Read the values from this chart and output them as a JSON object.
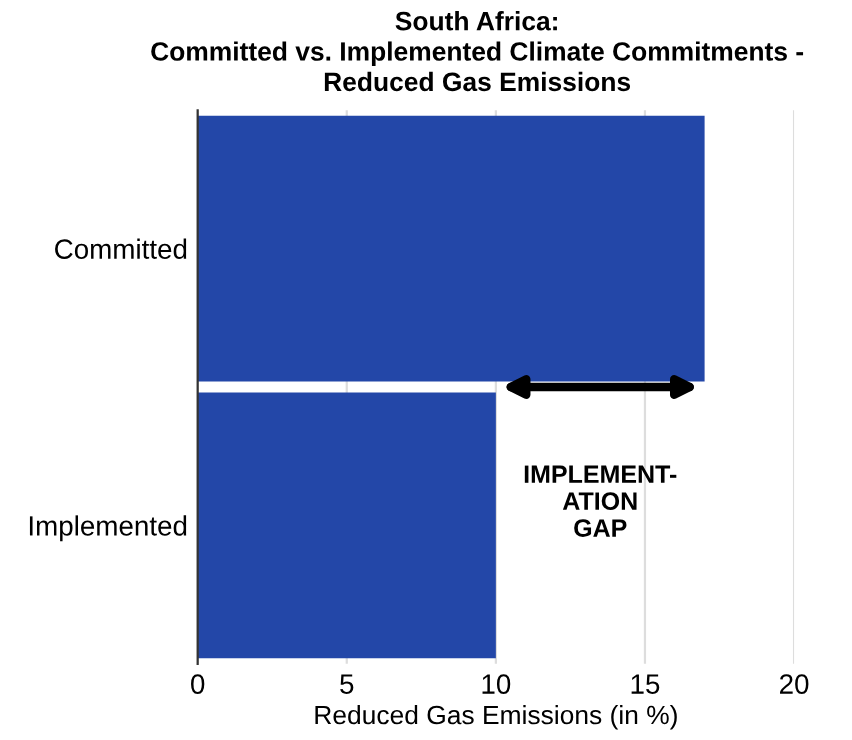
{
  "chart_data": {
    "type": "bar",
    "orientation": "horizontal",
    "title": "South Africa:\nCommitted vs. Implemented Climate Commitments -\nReduced Gas Emissions",
    "xlabel": "Reduced Gas Emissions (in %)",
    "categories": [
      "Committed",
      "Implemented"
    ],
    "values": [
      17,
      10
    ],
    "color": "#2347a8",
    "xlim": [
      0,
      20
    ],
    "xticks": [
      0,
      5,
      10,
      15,
      20
    ],
    "grid": "x",
    "annotations": [
      "IMPLEMENT-\nATION\nGAP"
    ]
  }
}
